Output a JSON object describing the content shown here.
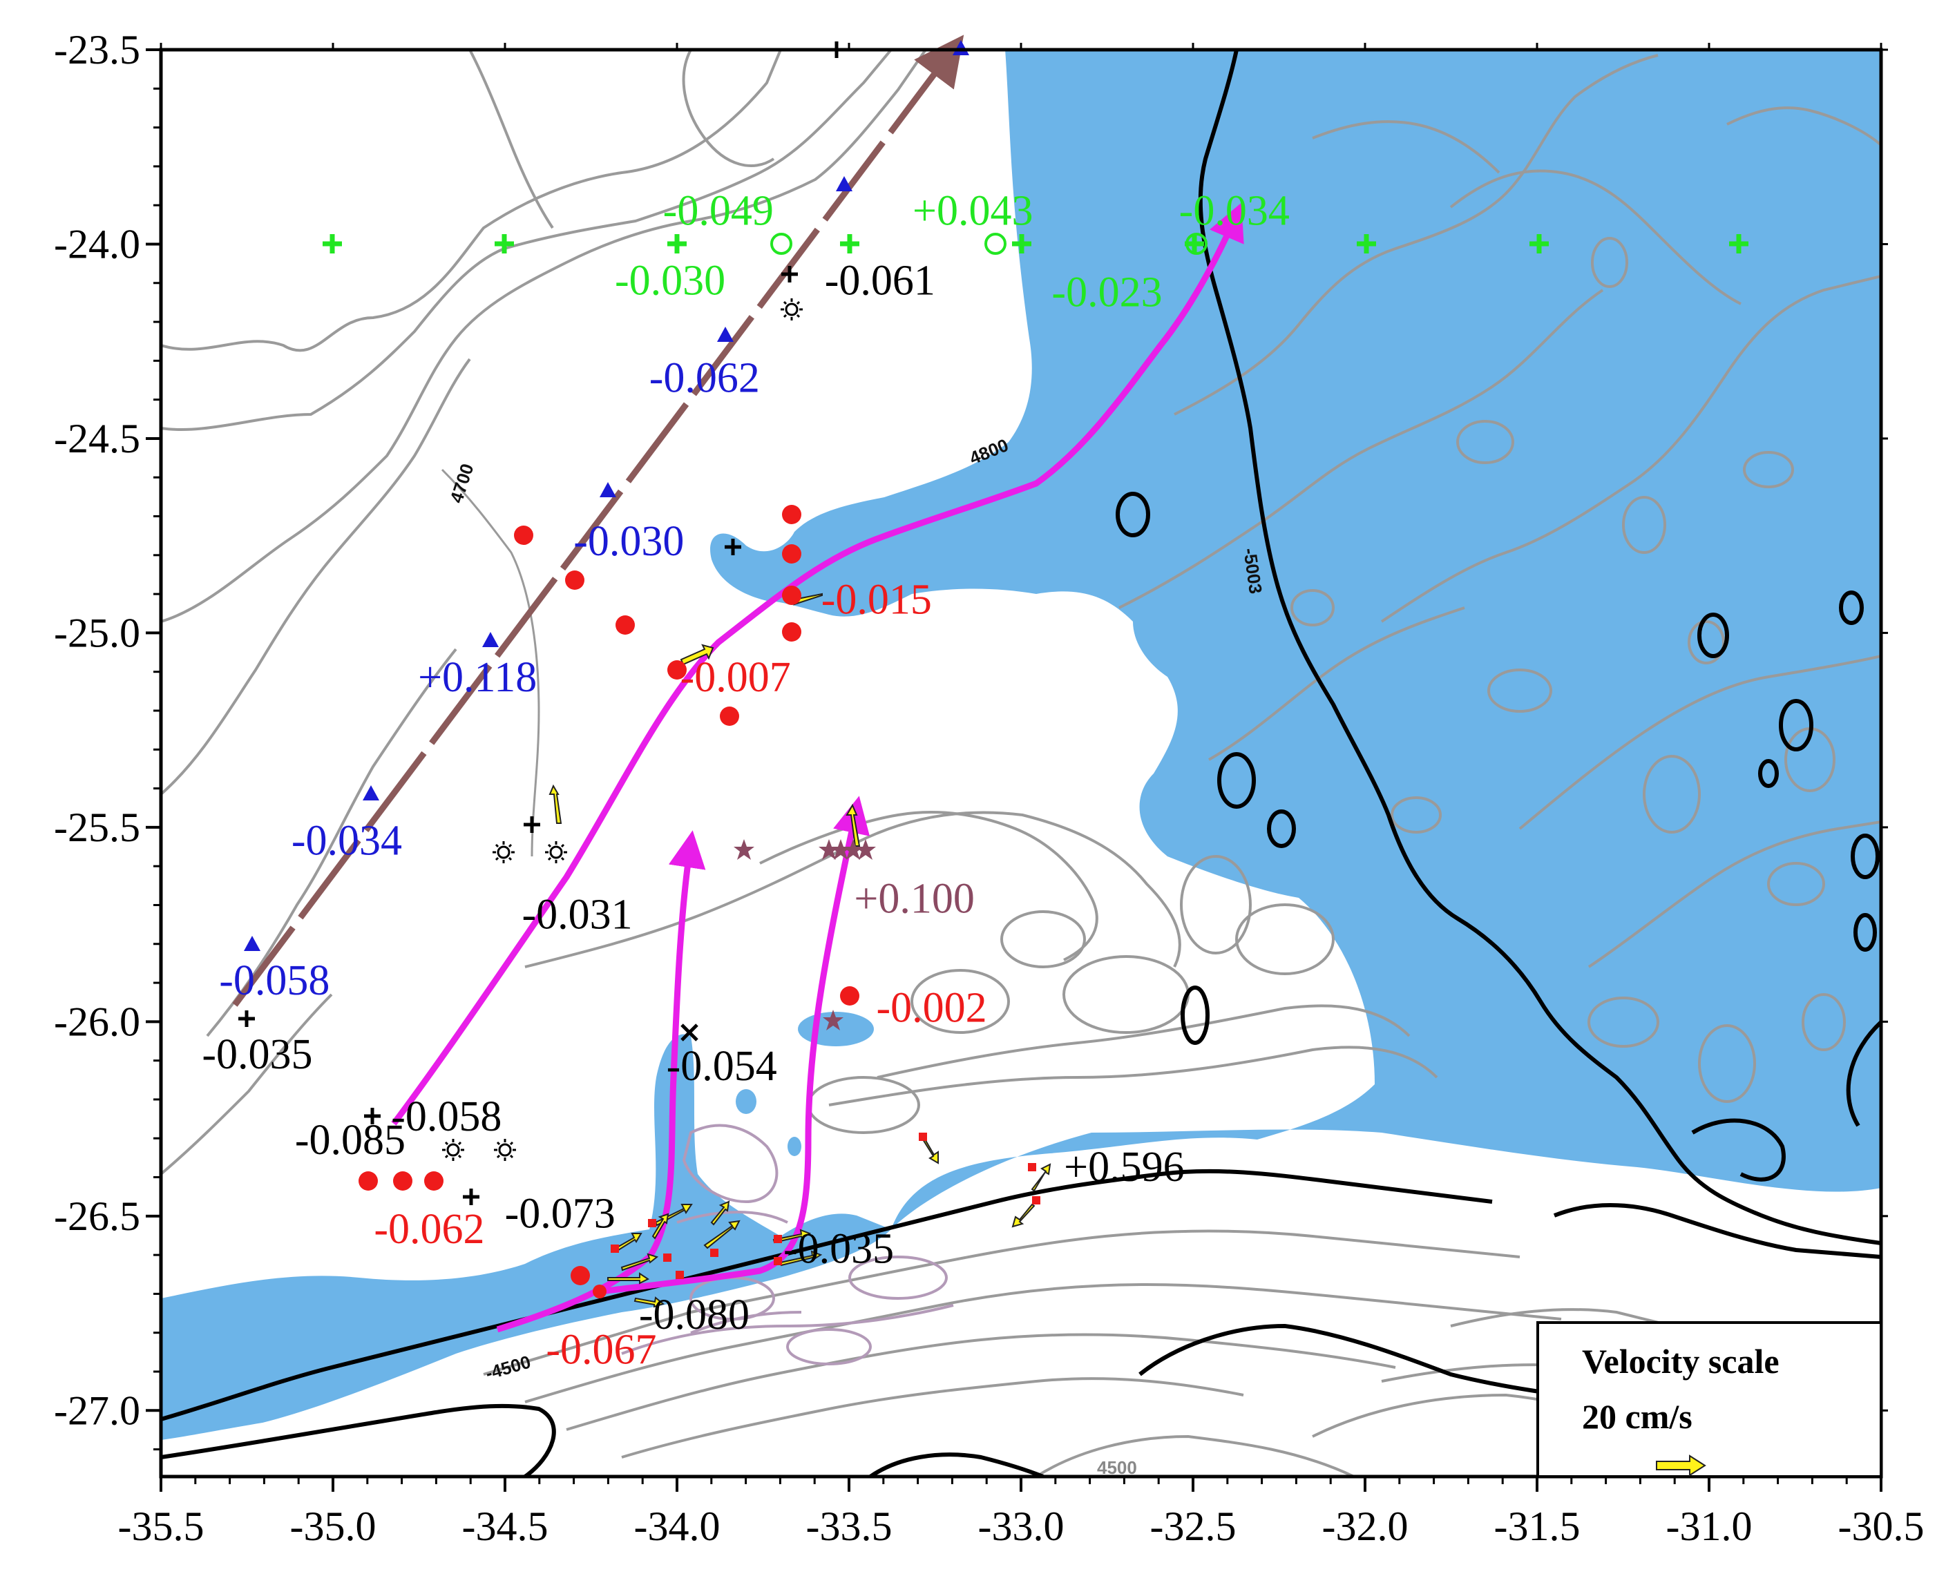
{
  "colors": {
    "deep_water": "#6cb4e8",
    "contour_gray": "#9a9a9a",
    "contour_dark": "#000000",
    "contour_purple": "#b39ab8",
    "ridge": "#8b5a5a",
    "flow": "#e81ee8",
    "red": "#ee1b1b",
    "blue": "#1a1ad4",
    "green": "#22e622",
    "black": "#000000",
    "brown_star": "#8a4a62",
    "yellow_arrow": "#fff21a"
  },
  "axes": {
    "x_ticks": [
      "-35.5",
      "-35.0",
      "-34.5",
      "-34.0",
      "-33.5",
      "-33.0",
      "-32.5",
      "-32.0",
      "-31.5",
      "-31.0",
      "-30.5"
    ],
    "y_ticks": [
      "-23.5",
      "-24.0",
      "-24.5",
      "-25.0",
      "-25.5",
      "-26.0",
      "-26.5",
      "-27.0"
    ],
    "xlim": [
      -35.5,
      -30.5
    ],
    "ylim": [
      -27.17,
      -23.5
    ]
  },
  "contour_labels": [
    "4700",
    "4800",
    "-5003",
    "-4500",
    "4500"
  ],
  "legend": {
    "title": "Velocity scale",
    "value": "20 cm/s"
  },
  "annotations": {
    "green": [
      {
        "text": "-0.049",
        "lon": -33.88,
        "lat": -23.95
      },
      {
        "text": "+0.043",
        "lon": -33.14,
        "lat": -23.95
      },
      {
        "text": "-0.034",
        "lon": -32.38,
        "lat": -23.95
      },
      {
        "text": "-0.030",
        "lon": -34.02,
        "lat": -24.13
      },
      {
        "text": "-0.023",
        "lon": -32.75,
        "lat": -24.16
      }
    ],
    "black": [
      {
        "text": "-0.061",
        "lon": -33.41,
        "lat": -24.13
      },
      {
        "text": "-0.031",
        "lon": -34.29,
        "lat": -25.76
      },
      {
        "text": "-0.035",
        "lon": -35.22,
        "lat": -26.12
      },
      {
        "text": "-0.058",
        "lon": -34.67,
        "lat": -26.28
      },
      {
        "text": "-0.085",
        "lon": -34.95,
        "lat": -26.34
      },
      {
        "text": "-0.073",
        "lon": -34.34,
        "lat": -26.53
      },
      {
        "text": "-0.054",
        "lon": -33.87,
        "lat": -26.15
      },
      {
        "text": "-0.035",
        "lon": -33.53,
        "lat": -26.62
      },
      {
        "text": "-0.080",
        "lon": -33.95,
        "lat": -26.79
      },
      {
        "text": "+0.596",
        "lon": -32.7,
        "lat": -26.41
      }
    ],
    "blue": [
      {
        "text": "-0.062",
        "lon": -33.92,
        "lat": -24.38
      },
      {
        "text": "-0.030",
        "lon": -34.14,
        "lat": -24.8
      },
      {
        "text": "+0.118",
        "lon": -34.58,
        "lat": -25.15
      },
      {
        "text": "-0.034",
        "lon": -34.96,
        "lat": -25.57
      },
      {
        "text": "-0.058",
        "lon": -35.17,
        "lat": -25.93
      }
    ],
    "red": [
      {
        "text": "-0.015",
        "lon": -33.42,
        "lat": -24.95
      },
      {
        "text": "-0.007",
        "lon": -33.83,
        "lat": -25.15
      },
      {
        "text": "-0.002",
        "lon": -33.26,
        "lat": -26.0
      },
      {
        "text": "-0.062",
        "lon": -34.72,
        "lat": -26.57
      },
      {
        "text": "-0.067",
        "lon": -34.22,
        "lat": -26.88
      }
    ],
    "brown": [
      {
        "text": "+0.100",
        "lon": -33.31,
        "lat": -25.72
      }
    ]
  }
}
